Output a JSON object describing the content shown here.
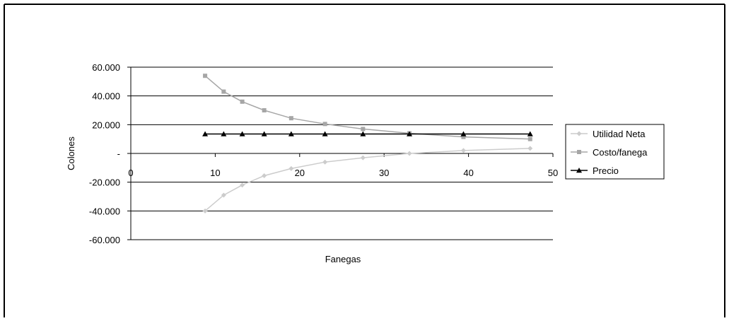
{
  "chart_data": {
    "type": "scatter",
    "title": "",
    "xlabel": "Fanegas",
    "ylabel": "Colones",
    "xlim": [
      0,
      50
    ],
    "ylim": [
      -60000,
      60000
    ],
    "x_ticks": [
      0,
      10,
      20,
      30,
      40,
      50
    ],
    "x_tick_labels": [
      "0",
      "10",
      "20",
      "30",
      "40",
      "50"
    ],
    "y_ticks": [
      60000,
      40000,
      20000,
      0,
      -20000,
      -40000,
      -60000
    ],
    "y_tick_labels": [
      "60.000",
      "40.000",
      "20.000",
      "-",
      "-20.000",
      "-40.000",
      "-60.000"
    ],
    "grid": "horizontal",
    "legend_position": "right",
    "x": [
      8.8,
      11,
      13.2,
      15.8,
      19,
      23,
      27.5,
      33,
      39.4,
      47.3
    ],
    "series": [
      {
        "name": "Utilidad Neta",
        "color": "#cccccc",
        "marker": "diamond",
        "values": [
          -40000,
          -29000,
          -22000,
          -15500,
          -10500,
          -6000,
          -3000,
          0,
          2000,
          3500
        ]
      },
      {
        "name": "Costo/fanega",
        "color": "#a6a6a6",
        "marker": "square",
        "values": [
          54000,
          43000,
          36000,
          30000,
          24500,
          20500,
          17000,
          14000,
          11500,
          10000
        ]
      },
      {
        "name": "Precio",
        "color": "#000000",
        "marker": "triangle",
        "values": [
          13500,
          13500,
          13500,
          13500,
          13500,
          13500,
          13500,
          13500,
          13500,
          13500
        ]
      }
    ]
  }
}
